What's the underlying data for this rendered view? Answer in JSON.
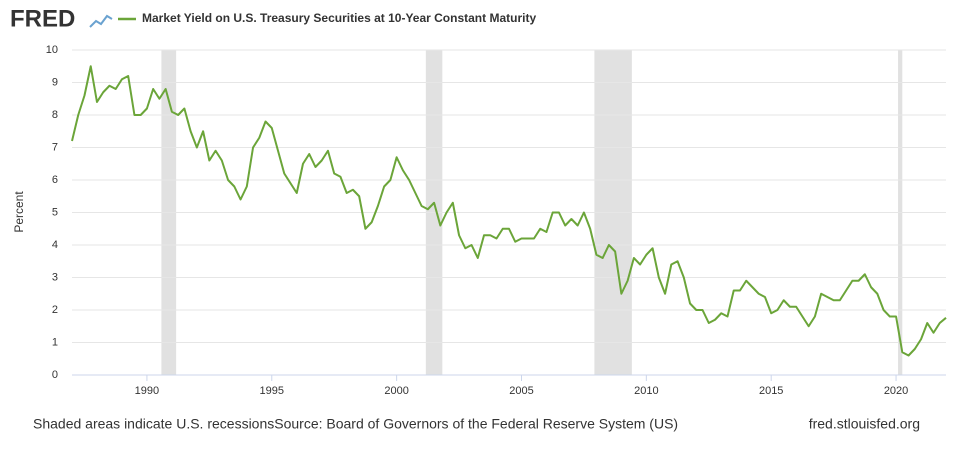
{
  "logo": "FRED",
  "chart_data": {
    "type": "line",
    "y_label": "Percent",
    "series": [
      {
        "name": "Market Yield on U.S. Treasury Securities at 10-Year Constant Maturity",
        "color": "#6ba539",
        "values": [
          7.2,
          8.0,
          8.6,
          9.5,
          8.4,
          8.7,
          8.9,
          8.8,
          9.1,
          9.2,
          8.0,
          8.0,
          8.2,
          8.8,
          8.5,
          8.8,
          8.1,
          8.0,
          8.2,
          7.5,
          7.0,
          7.5,
          6.6,
          6.9,
          6.6,
          6.0,
          5.8,
          5.4,
          5.8,
          7.0,
          7.3,
          7.8,
          7.6,
          6.9,
          6.2,
          5.9,
          5.6,
          6.5,
          6.8,
          6.4,
          6.6,
          6.9,
          6.2,
          6.1,
          5.6,
          5.7,
          5.5,
          4.5,
          4.7,
          5.2,
          5.8,
          6.0,
          6.7,
          6.3,
          6.0,
          5.6,
          5.2,
          5.1,
          5.3,
          4.6,
          5.0,
          5.3,
          4.3,
          3.9,
          4.0,
          3.6,
          4.3,
          4.3,
          4.2,
          4.5,
          4.5,
          4.1,
          4.2,
          4.2,
          4.2,
          4.5,
          4.4,
          5.0,
          5.0,
          4.6,
          4.8,
          4.6,
          5.0,
          4.5,
          3.7,
          3.6,
          4.0,
          3.8,
          2.5,
          2.9,
          3.6,
          3.4,
          3.7,
          3.9,
          3.0,
          2.5,
          3.4,
          3.5,
          3.0,
          2.2,
          2.0,
          2.0,
          1.6,
          1.7,
          1.9,
          1.8,
          2.6,
          2.6,
          2.9,
          2.7,
          2.5,
          2.4,
          1.9,
          2.0,
          2.3,
          2.1,
          2.1,
          1.8,
          1.5,
          1.8,
          2.5,
          2.4,
          2.3,
          2.3,
          2.6,
          2.9,
          2.9,
          3.1,
          2.7,
          2.5,
          2.0,
          1.8,
          1.8,
          0.7,
          0.6,
          0.8,
          1.1,
          1.6,
          1.3,
          1.6,
          1.76
        ]
      }
    ],
    "x": [
      1987,
      1987.25,
      1987.5,
      1987.75,
      1988,
      1988.25,
      1988.5,
      1988.75,
      1989,
      1989.25,
      1989.5,
      1989.75,
      1990,
      1990.25,
      1990.5,
      1990.75,
      1991,
      1991.25,
      1991.5,
      1991.75,
      1992,
      1992.25,
      1992.5,
      1992.75,
      1993,
      1993.25,
      1993.5,
      1993.75,
      1994,
      1994.25,
      1994.5,
      1994.75,
      1995,
      1995.25,
      1995.5,
      1995.75,
      1996,
      1996.25,
      1996.5,
      1996.75,
      1997,
      1997.25,
      1997.5,
      1997.75,
      1998,
      1998.25,
      1998.5,
      1998.75,
      1999,
      1999.25,
      1999.5,
      1999.75,
      2000,
      2000.25,
      2000.5,
      2000.75,
      2001,
      2001.25,
      2001.5,
      2001.75,
      2002,
      2002.25,
      2002.5,
      2002.75,
      2003,
      2003.25,
      2003.5,
      2003.75,
      2004,
      2004.25,
      2004.5,
      2004.75,
      2005,
      2005.25,
      2005.5,
      2005.75,
      2006,
      2006.25,
      2006.5,
      2006.75,
      2007,
      2007.25,
      2007.5,
      2007.75,
      2008,
      2008.25,
      2008.5,
      2008.75,
      2009,
      2009.25,
      2009.5,
      2009.75,
      2010,
      2010.25,
      2010.5,
      2010.75,
      2011,
      2011.25,
      2011.5,
      2011.75,
      2012,
      2012.25,
      2012.5,
      2012.75,
      2013,
      2013.25,
      2013.5,
      2013.75,
      2014,
      2014.25,
      2014.5,
      2014.75,
      2015,
      2015.25,
      2015.5,
      2015.75,
      2016,
      2016.25,
      2016.5,
      2016.75,
      2017,
      2017.25,
      2017.5,
      2017.75,
      2018,
      2018.25,
      2018.5,
      2018.75,
      2019,
      2019.25,
      2019.5,
      2019.75,
      2020,
      2020.25,
      2020.5,
      2020.75,
      2021,
      2021.25,
      2021.5,
      2021.75,
      2022
    ],
    "xlim": [
      1987,
      2022
    ],
    "xticks": [
      1990,
      1995,
      2000,
      2005,
      2010,
      2015,
      2020
    ],
    "ylim": [
      0,
      10
    ],
    "yticks": [
      0,
      1,
      2,
      3,
      4,
      5,
      6,
      7,
      8,
      9,
      10
    ],
    "grid": true,
    "recessions": [
      [
        1990.58,
        1991.17
      ],
      [
        2001.17,
        2001.83
      ],
      [
        2007.92,
        2009.42
      ],
      [
        2020.08,
        2020.25
      ]
    ],
    "recession_color": "#e1e1e1"
  },
  "footer": {
    "note": "Shaded areas indicate U.S. recessions",
    "source": "Source: Board of Governors of the Federal Reserve System (US)",
    "site": "fred.stlouisfed.org"
  }
}
